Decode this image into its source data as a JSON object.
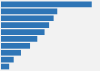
{
  "chart_data": {
    "type": "bar",
    "orientation": "horizontal",
    "categories": [
      null,
      null,
      null,
      null,
      null,
      null,
      null,
      null,
      null,
      null
    ],
    "values": [
      100,
      62,
      58,
      53,
      48,
      40,
      32,
      22,
      14,
      9
    ],
    "color": "#2e75b6",
    "xlim": [
      0,
      108
    ],
    "tick_labels": false,
    "grid": false
  }
}
